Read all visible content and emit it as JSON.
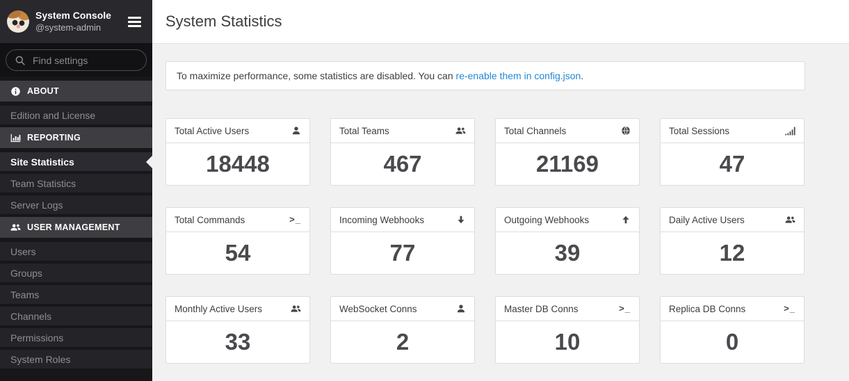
{
  "sidebar": {
    "header": {
      "title": "System Console",
      "subtitle": "@system-admin"
    },
    "search": {
      "placeholder": "Find settings",
      "icon": "search-icon"
    },
    "sections": [
      {
        "label": "ABOUT",
        "icon": "info-icon",
        "items": [
          {
            "label": "Edition and License",
            "active": false
          }
        ]
      },
      {
        "label": "REPORTING",
        "icon": "bar-chart-icon",
        "items": [
          {
            "label": "Site Statistics",
            "active": true
          },
          {
            "label": "Team Statistics",
            "active": false
          },
          {
            "label": "Server Logs",
            "active": false
          }
        ]
      },
      {
        "label": "USER MANAGEMENT",
        "icon": "user-group-icon",
        "items": [
          {
            "label": "Users",
            "active": false
          },
          {
            "label": "Groups",
            "active": false
          },
          {
            "label": "Teams",
            "active": false
          },
          {
            "label": "Channels",
            "active": false
          },
          {
            "label": "Permissions",
            "active": false
          },
          {
            "label": "System Roles",
            "active": false
          }
        ]
      }
    ]
  },
  "main": {
    "title": "System Statistics",
    "banner": {
      "text_before_link": "To maximize performance, some statistics are disabled. You can ",
      "link_text": "re-enable them in config.json",
      "text_after_link": "."
    },
    "stats": [
      {
        "label": "Total Active Users",
        "icon": "user-icon",
        "value": "18448"
      },
      {
        "label": "Total Teams",
        "icon": "user-group-icon",
        "value": "467"
      },
      {
        "label": "Total Channels",
        "icon": "globe-icon",
        "value": "21169"
      },
      {
        "label": "Total Sessions",
        "icon": "signal-icon",
        "value": "47"
      },
      {
        "label": "Total Commands",
        "icon": "terminal-icon",
        "value": "54"
      },
      {
        "label": "Incoming Webhooks",
        "icon": "arrow-down-icon",
        "value": "77"
      },
      {
        "label": "Outgoing Webhooks",
        "icon": "arrow-up-icon",
        "value": "39"
      },
      {
        "label": "Daily Active Users",
        "icon": "user-group-icon",
        "value": "12"
      },
      {
        "label": "Monthly Active Users",
        "icon": "user-group-icon",
        "value": "33"
      },
      {
        "label": "WebSocket Conns",
        "icon": "user-icon",
        "value": "2"
      },
      {
        "label": "Master DB Conns",
        "icon": "terminal-icon",
        "value": "10"
      },
      {
        "label": "Replica DB Conns",
        "icon": "terminal-icon",
        "value": "0"
      }
    ]
  },
  "colors": {
    "link": "#2389d7",
    "active_item_text": "#ffffff"
  }
}
